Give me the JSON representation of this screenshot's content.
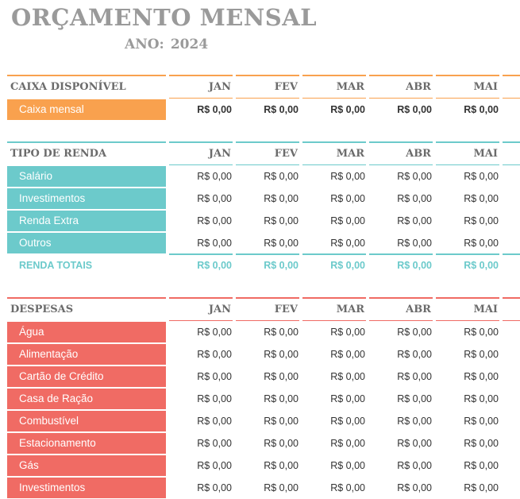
{
  "title": "ORÇAMENTO MENSAL",
  "year_label": "ANO:",
  "year": "2024",
  "months": [
    "JAN",
    "FEV",
    "MAR",
    "ABR",
    "MAI"
  ],
  "colors": {
    "orange": "#f9a14e",
    "teal": "#6ccacb",
    "red": "#f06b64",
    "header_text": "#6b6b6b",
    "title": "#9a9a9a"
  },
  "sections": [
    {
      "id": "caixa",
      "title": "CAIXA DISPONÍVEL",
      "color": "#f9a14e",
      "bold_values": true,
      "rows": [
        {
          "label": "Caixa mensal",
          "values": [
            "R$ 0,00",
            "R$ 0,00",
            "R$ 0,00",
            "R$ 0,00",
            "R$ 0,00"
          ]
        }
      ]
    },
    {
      "id": "renda",
      "title": "TIPO DE RENDA",
      "color": "#6ccacb",
      "bold_values": false,
      "rows": [
        {
          "label": "Salário",
          "values": [
            "R$ 0,00",
            "R$ 0,00",
            "R$ 0,00",
            "R$ 0,00",
            "R$ 0,00"
          ]
        },
        {
          "label": "Investimentos",
          "values": [
            "R$ 0,00",
            "R$ 0,00",
            "R$ 0,00",
            "R$ 0,00",
            "R$ 0,00"
          ]
        },
        {
          "label": "Renda Extra",
          "values": [
            "R$ 0,00",
            "R$ 0,00",
            "R$ 0,00",
            "R$ 0,00",
            "R$ 0,00"
          ]
        },
        {
          "label": "Outros",
          "values": [
            "R$ 0,00",
            "R$ 0,00",
            "R$ 0,00",
            "R$ 0,00",
            "R$ 0,00"
          ]
        }
      ],
      "total": {
        "label": "RENDA TOTAIS",
        "values": [
          "R$ 0,00",
          "R$ 0,00",
          "R$ 0,00",
          "R$ 0,00",
          "R$ 0,00"
        ]
      }
    },
    {
      "id": "despesas",
      "title": "DESPESAS",
      "color": "#f06b64",
      "bold_values": false,
      "rows": [
        {
          "label": "Água",
          "values": [
            "R$ 0,00",
            "R$ 0,00",
            "R$ 0,00",
            "R$ 0,00",
            "R$ 0,00"
          ]
        },
        {
          "label": "Alimentação",
          "values": [
            "R$ 0,00",
            "R$ 0,00",
            "R$ 0,00",
            "R$ 0,00",
            "R$ 0,00"
          ]
        },
        {
          "label": "Cartão de Crédito",
          "values": [
            "R$ 0,00",
            "R$ 0,00",
            "R$ 0,00",
            "R$ 0,00",
            "R$ 0,00"
          ]
        },
        {
          "label": "Casa de Ração",
          "values": [
            "R$ 0,00",
            "R$ 0,00",
            "R$ 0,00",
            "R$ 0,00",
            "R$ 0,00"
          ]
        },
        {
          "label": "Combustível",
          "values": [
            "R$ 0,00",
            "R$ 0,00",
            "R$ 0,00",
            "R$ 0,00",
            "R$ 0,00"
          ]
        },
        {
          "label": "Estacionamento",
          "values": [
            "R$ 0,00",
            "R$ 0,00",
            "R$ 0,00",
            "R$ 0,00",
            "R$ 0,00"
          ]
        },
        {
          "label": "Gás",
          "values": [
            "R$ 0,00",
            "R$ 0,00",
            "R$ 0,00",
            "R$ 0,00",
            "R$ 0,00"
          ]
        },
        {
          "label": "Investimentos",
          "values": [
            "R$ 0,00",
            "R$ 0,00",
            "R$ 0,00",
            "R$ 0,00",
            "R$ 0,00"
          ]
        }
      ]
    }
  ]
}
